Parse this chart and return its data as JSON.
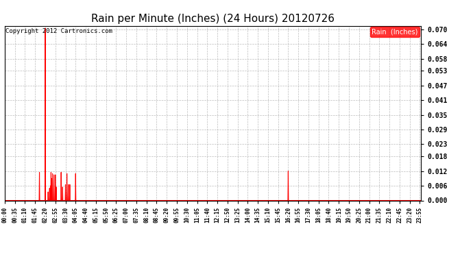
{
  "title": "Rain per Minute (Inches) (24 Hours) 20120726",
  "copyright_text": "Copyright 2012 Cartronics.com",
  "legend_label": "Rain  (Inches)",
  "line_color": "#FF0000",
  "background_color": "#FFFFFF",
  "grid_color": "#AAAAAA",
  "yticks": [
    0.0,
    0.006,
    0.012,
    0.018,
    0.023,
    0.029,
    0.035,
    0.041,
    0.047,
    0.053,
    0.058,
    0.064,
    0.07
  ],
  "ylim": [
    0.0,
    0.0715
  ],
  "total_minutes": 1440,
  "spikes": [
    {
      "minute": 140,
      "value": 0.0705
    },
    {
      "minute": 120,
      "value": 0.0115
    },
    {
      "minute": 150,
      "value": 0.0035
    },
    {
      "minute": 155,
      "value": 0.005
    },
    {
      "minute": 158,
      "value": 0.006
    },
    {
      "minute": 160,
      "value": 0.0115
    },
    {
      "minute": 163,
      "value": 0.009
    },
    {
      "minute": 165,
      "value": 0.011
    },
    {
      "minute": 170,
      "value": 0.0105
    },
    {
      "minute": 175,
      "value": 0.0105
    },
    {
      "minute": 178,
      "value": 0.0055
    },
    {
      "minute": 195,
      "value": 0.0115
    },
    {
      "minute": 200,
      "value": 0.0055
    },
    {
      "minute": 210,
      "value": 0.0065
    },
    {
      "minute": 215,
      "value": 0.011
    },
    {
      "minute": 220,
      "value": 0.0065
    },
    {
      "minute": 225,
      "value": 0.0065
    },
    {
      "minute": 245,
      "value": 0.011
    },
    {
      "minute": 980,
      "value": 0.012
    }
  ],
  "xtick_interval": 35,
  "xtick_count": 48,
  "title_fontsize": 11,
  "ytick_fontsize": 7,
  "xtick_fontsize": 5.5,
  "copyright_fontsize": 6.5,
  "legend_fontsize": 7
}
